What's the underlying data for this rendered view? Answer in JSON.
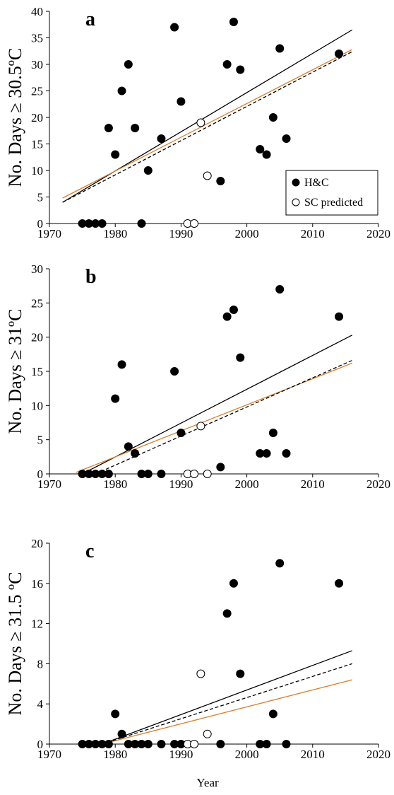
{
  "figure": {
    "xaxis_title": "Year"
  },
  "legend": {
    "items": [
      {
        "label": "H&C",
        "marker": "filled-circle"
      },
      {
        "label": "SC predicted",
        "marker": "open-circle"
      }
    ]
  },
  "colors": {
    "black_line": "#000000",
    "orange_line": "#d97e2c",
    "dashed_line": "#000000"
  },
  "chart_data": [
    {
      "type": "scatter",
      "panel_label": "a",
      "ylabel": "No. Days ≥ 30.5ºC",
      "xlabel": "",
      "xlim": [
        1970,
        2020
      ],
      "ylim": [
        0,
        40
      ],
      "xticks": [
        1970,
        1980,
        1990,
        2000,
        2010,
        2020
      ],
      "yticks": [
        0,
        5,
        10,
        15,
        20,
        25,
        30,
        35,
        40
      ],
      "legend_position": "bottom-right",
      "series": [
        {
          "name": "H&C",
          "marker": "filled-circle",
          "points": [
            [
              1975,
              0
            ],
            [
              1976,
              0
            ],
            [
              1977,
              0
            ],
            [
              1978,
              0
            ],
            [
              1979,
              18
            ],
            [
              1980,
              13
            ],
            [
              1981,
              25
            ],
            [
              1982,
              30
            ],
            [
              1983,
              18
            ],
            [
              1984,
              0
            ],
            [
              1985,
              10
            ],
            [
              1987,
              16
            ],
            [
              1989,
              37
            ],
            [
              1990,
              23
            ],
            [
              1996,
              8
            ],
            [
              1997,
              30
            ],
            [
              1998,
              38
            ],
            [
              1999,
              29
            ],
            [
              2002,
              14
            ],
            [
              2003,
              13
            ],
            [
              2004,
              20
            ],
            [
              2005,
              33
            ],
            [
              2006,
              16
            ],
            [
              2014,
              32
            ]
          ]
        },
        {
          "name": "SC predicted",
          "marker": "open-circle",
          "points": [
            [
              1991,
              0
            ],
            [
              1992,
              0
            ],
            [
              1993,
              19
            ],
            [
              1994,
              9
            ]
          ]
        }
      ],
      "trend_lines": [
        {
          "style": "solid",
          "color": "#000000",
          "x": [
            1972,
            2016
          ],
          "y": [
            4.0,
            36.5
          ]
        },
        {
          "style": "solid",
          "color": "#d97e2c",
          "x": [
            1972,
            2016
          ],
          "y": [
            4.8,
            32.8
          ]
        },
        {
          "style": "dashed",
          "color": "#000000",
          "x": [
            1972,
            2016
          ],
          "y": [
            4.0,
            32.4
          ]
        }
      ]
    },
    {
      "type": "scatter",
      "panel_label": "b",
      "ylabel": "No. Days ≥ 31ºC",
      "xlabel": "",
      "xlim": [
        1970,
        2020
      ],
      "ylim": [
        0,
        30
      ],
      "xticks": [
        1970,
        1980,
        1990,
        2000,
        2010,
        2020
      ],
      "yticks": [
        0,
        5,
        10,
        15,
        20,
        25,
        30
      ],
      "series": [
        {
          "name": "H&C",
          "marker": "filled-circle",
          "points": [
            [
              1975,
              0
            ],
            [
              1976,
              0
            ],
            [
              1977,
              0
            ],
            [
              1978,
              0
            ],
            [
              1979,
              0
            ],
            [
              1980,
              11
            ],
            [
              1981,
              16
            ],
            [
              1982,
              4
            ],
            [
              1983,
              3
            ],
            [
              1984,
              0
            ],
            [
              1985,
              0
            ],
            [
              1987,
              0
            ],
            [
              1989,
              15
            ],
            [
              1990,
              6
            ],
            [
              1996,
              1
            ],
            [
              1997,
              23
            ],
            [
              1998,
              24
            ],
            [
              1999,
              17
            ],
            [
              2002,
              3
            ],
            [
              2003,
              3
            ],
            [
              2004,
              6
            ],
            [
              2005,
              27
            ],
            [
              2006,
              3
            ],
            [
              2014,
              23
            ]
          ]
        },
        {
          "name": "SC predicted",
          "marker": "open-circle",
          "points": [
            [
              1991,
              0
            ],
            [
              1992,
              0
            ],
            [
              1993,
              7
            ],
            [
              1994,
              0
            ]
          ]
        }
      ],
      "trend_lines": [
        {
          "style": "solid",
          "color": "#000000",
          "x": [
            1975,
            2016
          ],
          "y": [
            0.0,
            20.3
          ]
        },
        {
          "style": "solid",
          "color": "#d97e2c",
          "x": [
            1974,
            2016
          ],
          "y": [
            0.2,
            16.2
          ]
        },
        {
          "style": "dashed",
          "color": "#000000",
          "x": [
            1977,
            2016
          ],
          "y": [
            0.0,
            16.6
          ]
        }
      ]
    },
    {
      "type": "scatter",
      "panel_label": "c",
      "ylabel": "No. Days ≥ 31.5 ºC",
      "xlabel": "Year",
      "xlim": [
        1970,
        2020
      ],
      "ylim": [
        0,
        20
      ],
      "xticks": [
        1970,
        1980,
        1990,
        2000,
        2010,
        2020
      ],
      "yticks": [
        0,
        4,
        8,
        12,
        16,
        20
      ],
      "series": [
        {
          "name": "H&C",
          "marker": "filled-circle",
          "points": [
            [
              1975,
              0
            ],
            [
              1976,
              0
            ],
            [
              1977,
              0
            ],
            [
              1978,
              0
            ],
            [
              1979,
              0
            ],
            [
              1980,
              3
            ],
            [
              1981,
              1
            ],
            [
              1982,
              0
            ],
            [
              1983,
              0
            ],
            [
              1984,
              0
            ],
            [
              1985,
              0
            ],
            [
              1987,
              0
            ],
            [
              1989,
              0
            ],
            [
              1990,
              0
            ],
            [
              1996,
              0
            ],
            [
              1997,
              13
            ],
            [
              1998,
              16
            ],
            [
              1999,
              7
            ],
            [
              2002,
              0
            ],
            [
              2003,
              0
            ],
            [
              2004,
              3
            ],
            [
              2005,
              18
            ],
            [
              2006,
              0
            ],
            [
              2014,
              16
            ]
          ]
        },
        {
          "name": "SC predicted",
          "marker": "open-circle",
          "points": [
            [
              1991,
              0
            ],
            [
              1992,
              0
            ],
            [
              1993,
              7
            ],
            [
              1994,
              1
            ]
          ]
        }
      ],
      "trend_lines": [
        {
          "style": "solid",
          "color": "#000000",
          "x": [
            1978,
            2016
          ],
          "y": [
            0.0,
            9.3
          ]
        },
        {
          "style": "solid",
          "color": "#d97e2c",
          "x": [
            1978,
            2016
          ],
          "y": [
            0.0,
            6.4
          ]
        },
        {
          "style": "dashed",
          "color": "#000000",
          "x": [
            1978,
            2016
          ],
          "y": [
            0.0,
            8.0
          ]
        }
      ]
    }
  ]
}
